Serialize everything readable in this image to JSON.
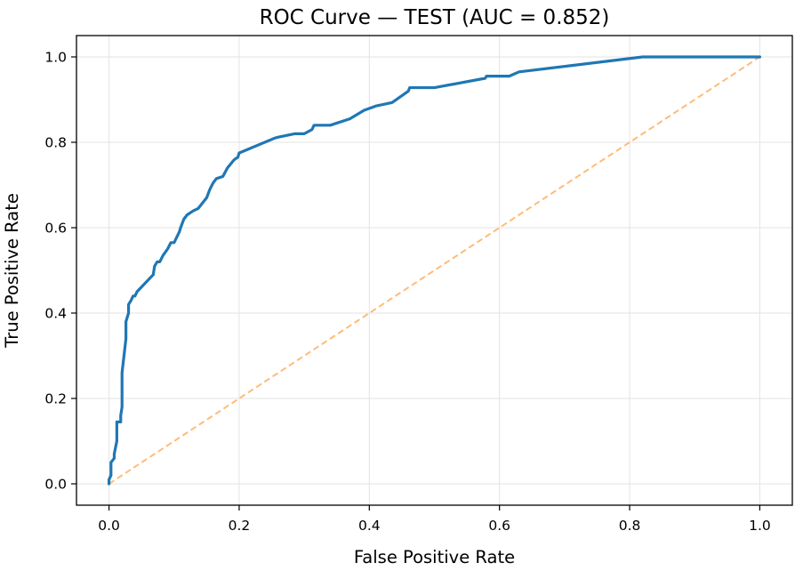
{
  "chart_data": {
    "type": "line",
    "title": "ROC Curve — TEST (AUC = 0.852)",
    "xlabel": "False Positive Rate",
    "ylabel": "True Positive Rate",
    "xlim": [
      -0.05,
      1.05
    ],
    "ylim": [
      -0.05,
      1.05
    ],
    "xticks": [
      0.0,
      0.2,
      0.4,
      0.6,
      0.8,
      1.0
    ],
    "yticks": [
      0.0,
      0.2,
      0.4,
      0.6,
      0.8,
      1.0
    ],
    "xtick_labels": [
      "0.0",
      "0.2",
      "0.4",
      "0.6",
      "0.8",
      "1.0"
    ],
    "ytick_labels": [
      "0.0",
      "0.2",
      "0.4",
      "0.6",
      "0.8",
      "1.0"
    ],
    "grid": true,
    "series": [
      {
        "color": "#1f77b4",
        "style": "solid",
        "x": [
          0.0,
          0.0,
          0.003,
          0.003,
          0.008,
          0.008,
          0.012,
          0.012,
          0.018,
          0.018,
          0.02,
          0.02,
          0.026,
          0.026,
          0.03,
          0.03,
          0.034,
          0.037,
          0.04,
          0.043,
          0.068,
          0.07,
          0.074,
          0.078,
          0.083,
          0.09,
          0.095,
          0.1,
          0.108,
          0.11,
          0.115,
          0.12,
          0.125,
          0.13,
          0.137,
          0.15,
          0.155,
          0.16,
          0.165,
          0.175,
          0.182,
          0.19,
          0.193,
          0.198,
          0.2,
          0.255,
          0.26,
          0.285,
          0.3,
          0.312,
          0.315,
          0.34,
          0.37,
          0.392,
          0.41,
          0.435,
          0.46,
          0.462,
          0.5,
          0.578,
          0.58,
          0.615,
          0.63,
          0.82,
          1.0
        ],
        "y": [
          0.0,
          0.01,
          0.02,
          0.05,
          0.06,
          0.07,
          0.1,
          0.145,
          0.145,
          0.16,
          0.18,
          0.26,
          0.34,
          0.38,
          0.4,
          0.42,
          0.43,
          0.44,
          0.44,
          0.45,
          0.49,
          0.51,
          0.52,
          0.52,
          0.535,
          0.55,
          0.565,
          0.565,
          0.59,
          0.6,
          0.62,
          0.63,
          0.635,
          0.64,
          0.645,
          0.67,
          0.69,
          0.705,
          0.715,
          0.72,
          0.74,
          0.755,
          0.76,
          0.765,
          0.775,
          0.81,
          0.812,
          0.82,
          0.82,
          0.83,
          0.84,
          0.84,
          0.855,
          0.875,
          0.885,
          0.893,
          0.92,
          0.928,
          0.928,
          0.95,
          0.955,
          0.955,
          0.965,
          1.0,
          1.0
        ]
      },
      {
        "color": "#ffbb78",
        "style": "dashed",
        "x": [
          0.0,
          1.0
        ],
        "y": [
          0.0,
          1.0
        ]
      }
    ]
  }
}
